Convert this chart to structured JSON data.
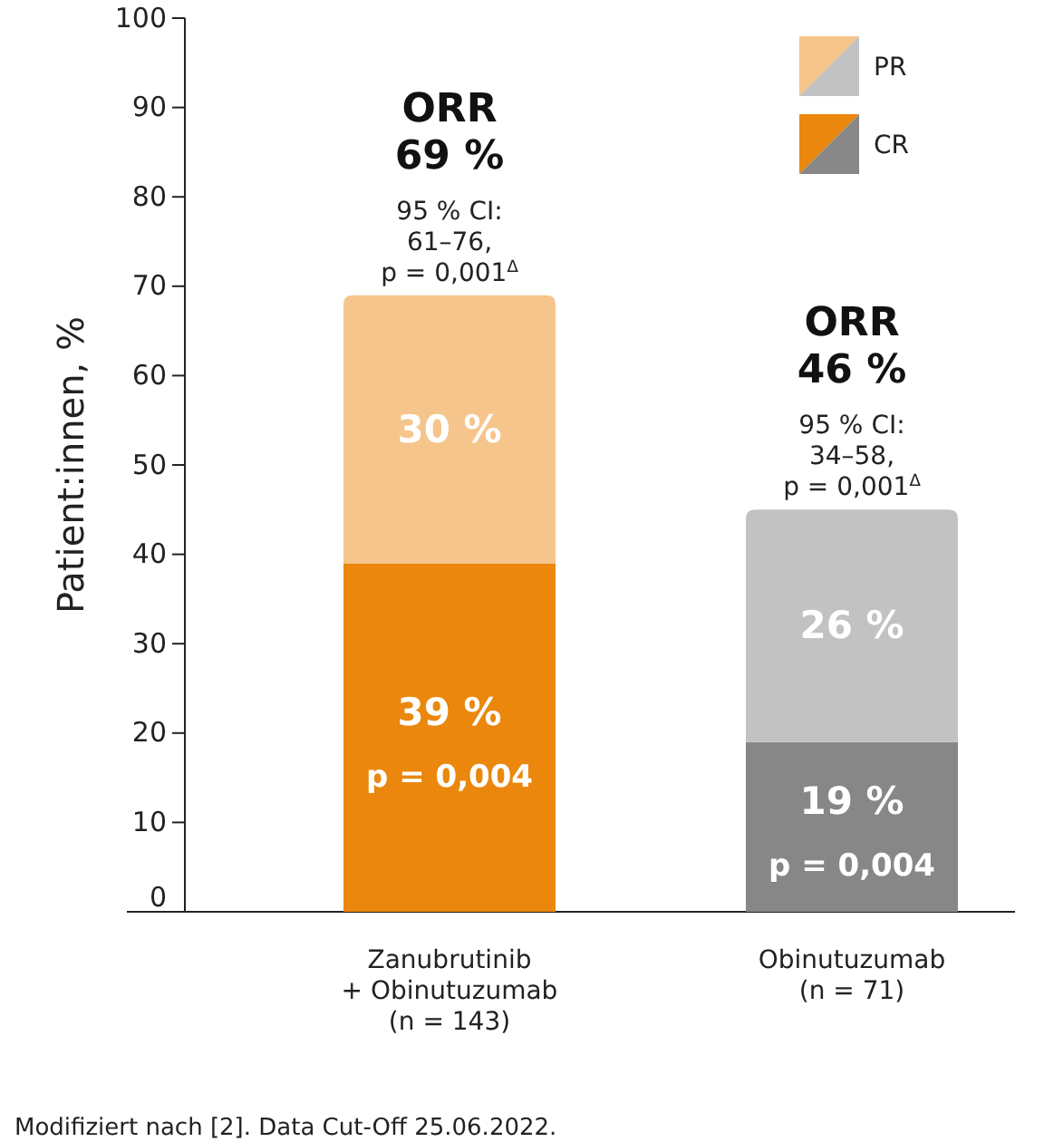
{
  "chart_data": {
    "type": "bar",
    "stacked": true,
    "ylabel": "Patient:innen, %",
    "ylim": [
      0,
      100
    ],
    "yticks": [
      0,
      10,
      20,
      30,
      40,
      50,
      60,
      70,
      80,
      90,
      100
    ],
    "grid": false,
    "legend": "top right",
    "categories": [
      "Zanubrutinib\n+ Obinutuzumab\n(n = 143)",
      "Obinutuzumab\n(n = 71)"
    ],
    "series": [
      {
        "name": "CR",
        "colors": [
          "#ea870c",
          "#878787"
        ],
        "values": [
          39,
          19
        ],
        "value_labels": [
          "39 %\np = 0,004",
          "19 %\np = 0,004"
        ]
      },
      {
        "name": "PR",
        "colors": [
          "#f6c58b",
          "#c2c2c2"
        ],
        "values": [
          30,
          26
        ],
        "value_labels": [
          "30 %",
          "26 %"
        ]
      }
    ],
    "totals": [
      "ORR\n69 %",
      "ORR\n46 %"
    ],
    "annotations": [
      {
        "text": "95 % CI:\n61–76,\np = 0,001$^{Δ}$",
        "x": "Zanubrutinib\n+ Obinutuzumab\n(n = 143)",
        "y": 69
      },
      {
        "text": "95 % CI:\n34–58,\np = 0,001$^{Δ}$",
        "x": "Obinutuzumab\n(n = 71)",
        "y": 45
      },
      "Modifiziert nach [2]. Data Cut-Off 25.06.2022."
    ]
  }
}
